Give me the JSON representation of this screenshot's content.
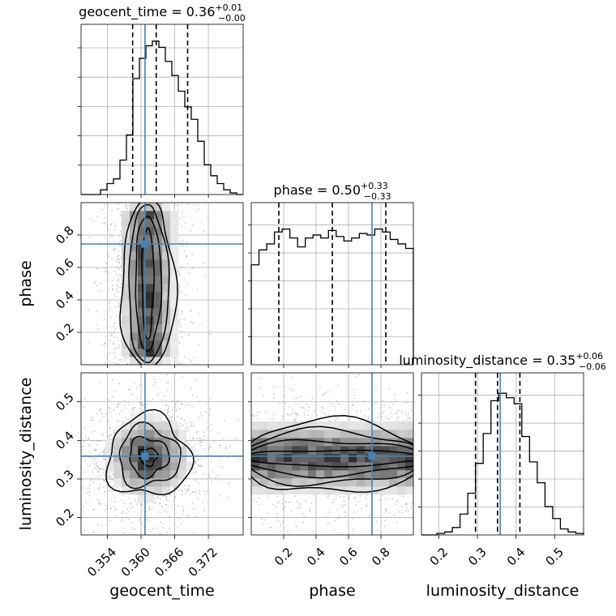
{
  "chart_data": {
    "type": "corner",
    "parameters": [
      "geocent_time",
      "phase",
      "luminosity_distance"
    ],
    "truths": {
      "geocent_time": 0.3607,
      "phase": 0.745,
      "luminosity_distance": 0.359
    },
    "titles": [
      {
        "param": "geocent_time",
        "label": "geocent_time = 0.36",
        "plus": "+0.01",
        "minus": "−0.00"
      },
      {
        "param": "phase",
        "label": "phase = 0.50",
        "plus": "+0.33",
        "minus": "−0.33"
      },
      {
        "param": "luminosity_distance",
        "label": "luminosity_distance = 0.35",
        "plus": "+0.06",
        "minus": "−0.06"
      }
    ],
    "axes": {
      "geocent_time": {
        "range": [
          0.3493,
          0.3782
        ],
        "ticks": [
          0.354,
          0.36,
          0.366,
          0.372
        ],
        "tick_labels": [
          "0.354",
          "0.360",
          "0.366",
          "0.372"
        ]
      },
      "phase": {
        "range": [
          0.0,
          1.0
        ],
        "ticks": [
          0.2,
          0.4,
          0.6,
          0.8
        ],
        "tick_labels": [
          "0.2",
          "0.4",
          "0.6",
          "0.8"
        ]
      },
      "luminosity_distance": {
        "range": [
          0.155,
          0.575
        ],
        "ticks": [
          0.2,
          0.3,
          0.4,
          0.5
        ],
        "tick_labels": [
          "0.2",
          "0.3",
          "0.4",
          "0.5"
        ]
      }
    },
    "quantiles": {
      "geocent_time": [
        0.3585,
        0.3627,
        0.3683
      ],
      "phase": [
        0.17,
        0.5,
        0.83
      ],
      "luminosity_distance": [
        0.295,
        0.352,
        0.41
      ]
    },
    "histograms": {
      "geocent_time": [
        0.0,
        0.0,
        0.0,
        0.03,
        0.07,
        0.1,
        0.22,
        0.38,
        0.74,
        0.87,
        0.95,
        0.98,
        0.94,
        0.85,
        0.76,
        0.66,
        0.56,
        0.48,
        0.34,
        0.19,
        0.12,
        0.07,
        0.03,
        0.01,
        0.0
      ],
      "phase": [
        0.67,
        0.77,
        0.81,
        0.89,
        0.91,
        0.85,
        0.79,
        0.85,
        0.87,
        0.85,
        0.9,
        0.86,
        0.83,
        0.85,
        0.88,
        0.87,
        0.91,
        0.89,
        0.84,
        0.81,
        0.78
      ],
      "luminosity_distance": [
        0.0,
        0.0,
        0.01,
        0.02,
        0.05,
        0.14,
        0.28,
        0.48,
        0.68,
        0.9,
        0.95,
        0.92,
        0.88,
        0.66,
        0.49,
        0.35,
        0.19,
        0.11,
        0.04,
        0.02,
        0.01
      ]
    }
  }
}
